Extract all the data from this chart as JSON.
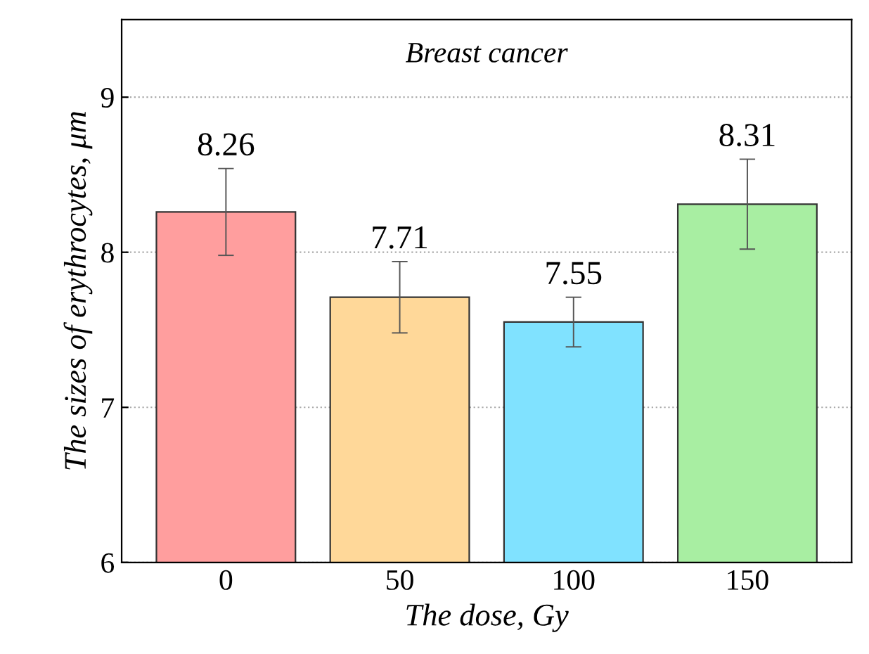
{
  "chart_data": {
    "type": "bar",
    "title": "Breast cancer",
    "xlabel": "The dose, Gy",
    "ylabel": "The sizes of erythrocytes, μm",
    "categories": [
      "0",
      "50",
      "100",
      "150"
    ],
    "values": [
      8.26,
      7.71,
      7.55,
      8.31
    ],
    "colors": [
      "#ff9e9e",
      "#ffd899",
      "#80e2ff",
      "#a8eea2"
    ],
    "errors": [
      0.28,
      0.23,
      0.16,
      0.29
    ],
    "data_labels": true,
    "ylim": [
      6,
      9.5
    ],
    "yticks": [
      6,
      7,
      8,
      9
    ],
    "grid": "y"
  }
}
